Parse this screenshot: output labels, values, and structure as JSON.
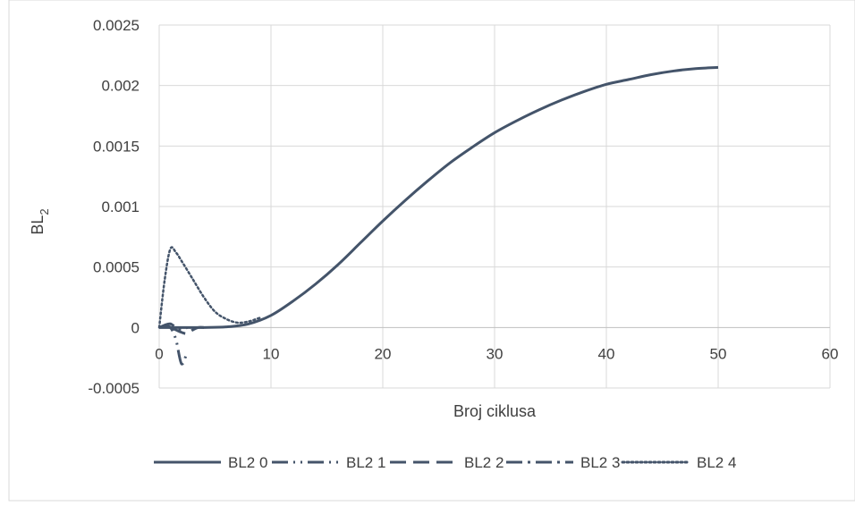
{
  "chart_data": {
    "type": "line",
    "title": "",
    "xlabel": "Broj ciklusa",
    "ylabel": "BL",
    "ylabel_subscript": "2",
    "xlim": [
      0,
      60
    ],
    "ylim": [
      -0.0005,
      0.0025
    ],
    "x_ticks": [
      "0",
      "10",
      "20",
      "30",
      "40",
      "50",
      "60"
    ],
    "y_ticks": [
      "-0.0005",
      "0",
      "0.0005",
      "0.001",
      "0.0015",
      "0.002",
      "0.0025"
    ],
    "grid": "vertical and horizontal",
    "legend_position": "bottom",
    "line_color": "#44546A",
    "series": [
      {
        "name": "BL2 0",
        "dash": "solid",
        "x": [
          0,
          2,
          4,
          6,
          8,
          10,
          12,
          14,
          16,
          18,
          20,
          22,
          24,
          26,
          28,
          30,
          32,
          34,
          36,
          38,
          40,
          42,
          44,
          46,
          48,
          50
        ],
        "y": [
          0,
          0,
          0,
          5e-06,
          3e-05,
          0.0001,
          0.00022,
          0.00036,
          0.00052,
          0.0007,
          0.00088,
          0.00105,
          0.00121,
          0.00136,
          0.00149,
          0.00161,
          0.00171,
          0.0018,
          0.00188,
          0.00195,
          0.00201,
          0.00205,
          0.00209,
          0.00212,
          0.00214,
          0.00215
        ]
      },
      {
        "name": "BL2 1",
        "dash": "long-dash-dot-dot",
        "x": [
          0,
          0.5,
          1,
          1.5,
          2,
          2.5
        ],
        "y": [
          0,
          1e-05,
          0,
          -0.0001,
          -0.0003,
          -0.0002
        ]
      },
      {
        "name": "BL2 2",
        "dash": "long-dash",
        "x": [
          1,
          1.5,
          2,
          2.5,
          3,
          3.5,
          4
        ],
        "y": [
          0,
          -2e-05,
          -4e-05,
          -5e-05,
          -2e-05,
          0,
          0
        ]
      },
      {
        "name": "BL2 3",
        "dash": "long-dash-dot",
        "x": [
          0,
          0.5,
          1,
          1.5,
          2,
          2.5
        ],
        "y": [
          0,
          2e-05,
          3e-05,
          0,
          -2e-05,
          0
        ]
      },
      {
        "name": "BL2 4",
        "dash": "dotted",
        "x": [
          0,
          0.5,
          1,
          1.5,
          2,
          3,
          4,
          5,
          6,
          7,
          8,
          9
        ],
        "y": [
          0,
          0.0004,
          0.00065,
          0.00062,
          0.00055,
          0.0004,
          0.00025,
          0.00013,
          7e-05,
          4e-05,
          5e-05,
          8e-05
        ]
      }
    ]
  }
}
